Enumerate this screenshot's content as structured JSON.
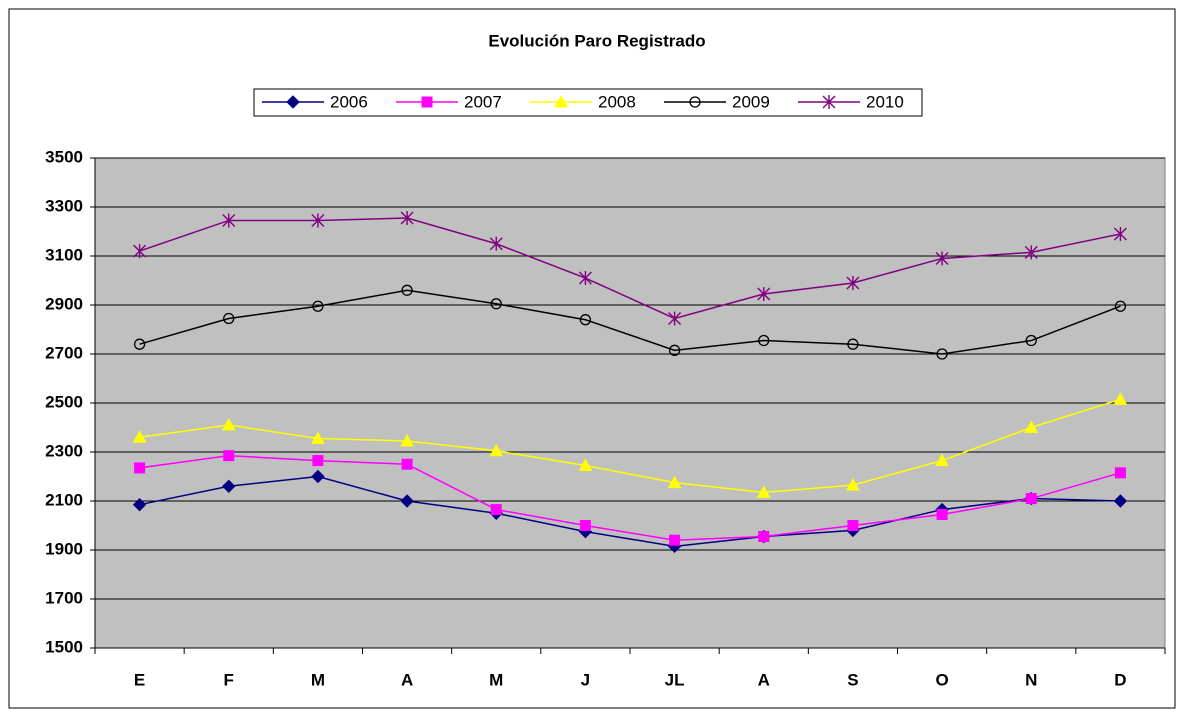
{
  "chart_data": {
    "type": "line",
    "title": "Evolución Paro Registrado",
    "categories": [
      "E",
      "F",
      "M",
      "A",
      "M",
      "J",
      "JL",
      "A",
      "S",
      "O",
      "N",
      "D"
    ],
    "series": [
      {
        "name": "2006",
        "color": "#000080",
        "marker": "diamond",
        "values": [
          2085,
          2160,
          2200,
          2100,
          2050,
          1975,
          1915,
          1955,
          1980,
          2065,
          2110,
          2100
        ]
      },
      {
        "name": "2007",
        "color": "#FF00FF",
        "marker": "square",
        "values": [
          2235,
          2285,
          2265,
          2250,
          2065,
          2000,
          1940,
          1955,
          2000,
          2045,
          2110,
          2215
        ]
      },
      {
        "name": "2008",
        "color": "#FFFF00",
        "marker": "triangle",
        "values": [
          2360,
          2410,
          2355,
          2345,
          2305,
          2245,
          2175,
          2135,
          2165,
          2265,
          2400,
          2515
        ]
      },
      {
        "name": "2009",
        "color": "#000000",
        "marker": "circle",
        "values": [
          2740,
          2845,
          2895,
          2960,
          2905,
          2840,
          2715,
          2755,
          2740,
          2700,
          2755,
          2895
        ]
      },
      {
        "name": "2010",
        "color": "#800080",
        "marker": "star",
        "values": [
          3120,
          3245,
          3245,
          3255,
          3150,
          3010,
          2845,
          2945,
          2990,
          3090,
          3115,
          3190
        ]
      }
    ],
    "ylim": [
      1500,
      3500
    ],
    "yticks": [
      1500,
      1700,
      1900,
      2100,
      2300,
      2500,
      2700,
      2900,
      3100,
      3300,
      3500
    ],
    "grid": true,
    "legend": "top"
  }
}
